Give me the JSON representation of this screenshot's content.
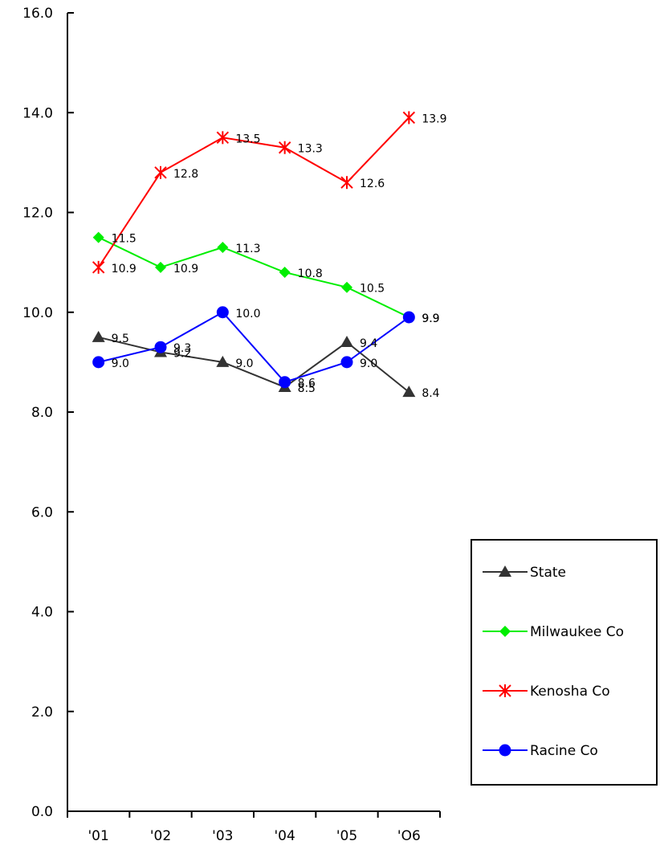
{
  "chart_data": {
    "type": "line",
    "categories": [
      "'01",
      "'02",
      "'03",
      "'04",
      "'05",
      "'O6"
    ],
    "ylim": [
      0,
      16
    ],
    "yticks": [
      "0.0",
      "2.0",
      "4.0",
      "6.0",
      "8.0",
      "10.0",
      "12.0",
      "14.0",
      "16.0"
    ],
    "grid": false,
    "legend_position": "right",
    "series": [
      {
        "name": "State",
        "color": "#333333",
        "marker": "triangle",
        "values": [
          9.5,
          9.2,
          9.0,
          8.5,
          9.4,
          8.4
        ],
        "labels": [
          "9.5",
          "9.2",
          "9.0",
          "8.5",
          "9.4",
          "8.4"
        ]
      },
      {
        "name": "Milwaukee Co",
        "color": "#00ee00",
        "marker": "diamond",
        "values": [
          11.5,
          10.9,
          11.3,
          10.8,
          10.5,
          9.9
        ],
        "labels": [
          "11.5",
          "10.9",
          "11.3",
          "10.8",
          "10.5",
          "9.9"
        ]
      },
      {
        "name": "Kenosha Co",
        "color": "#ff0000",
        "marker": "asterisk",
        "values": [
          10.9,
          12.8,
          13.5,
          13.3,
          12.6,
          13.9
        ],
        "labels": [
          "10.9",
          "12.8",
          "13.5",
          "13.3",
          "12.6",
          "13.9"
        ]
      },
      {
        "name": "Racine Co",
        "color": "#0000ff",
        "marker": "circle",
        "values": [
          9.0,
          9.3,
          10.0,
          8.6,
          9.0,
          9.9
        ],
        "labels": [
          "9.0",
          "9.3",
          "10.0",
          "8.6",
          "9.0",
          "9.9"
        ]
      }
    ]
  }
}
